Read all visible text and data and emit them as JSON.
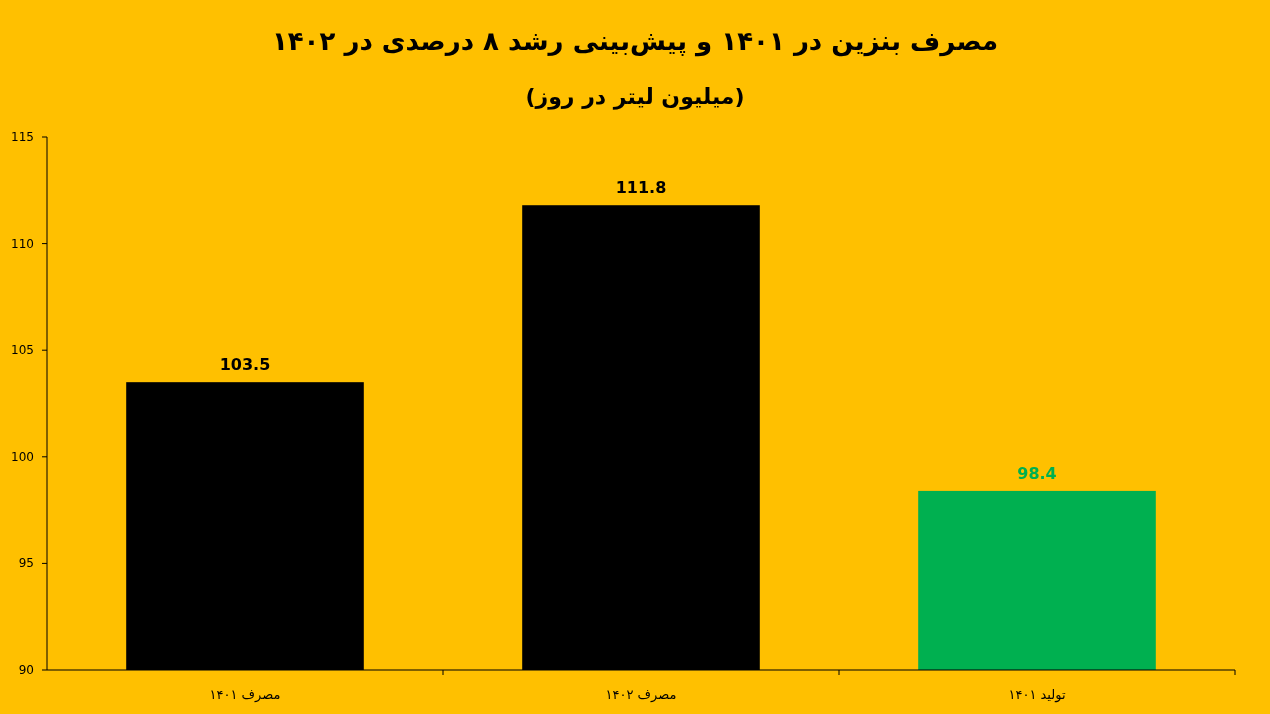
{
  "chart_data": {
    "type": "bar",
    "title": "مصرف بنزین در ۱۴۰۱ و پیش‌بینی رشد ۸ درصدی در ۱۴۰۲",
    "subtitle": "(میلیون لیتر در روز)",
    "categories": [
      "مصرف ۱۴۰۱",
      "مصرف ۱۴۰۲",
      "تولید ۱۴۰۱"
    ],
    "values": [
      103.5,
      111.8,
      98.4
    ],
    "colors": [
      "#000000",
      "#000000",
      "#00b050"
    ],
    "ylim": [
      90,
      115
    ],
    "yticks": [
      90,
      95,
      100,
      105,
      110,
      115
    ],
    "data_labels": true,
    "grid": false
  }
}
